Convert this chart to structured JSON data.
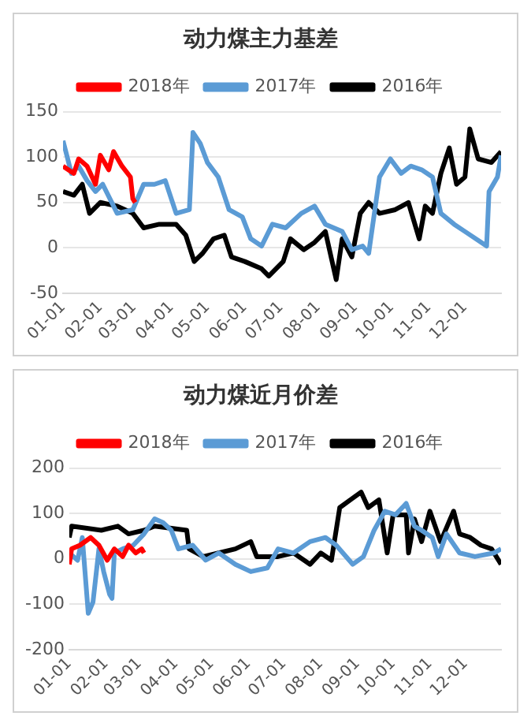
{
  "chart_data": [
    {
      "type": "line",
      "title": "动力煤主力基差",
      "legend": "top",
      "grid": "y",
      "line_style": "solid",
      "marker": "none",
      "ylim": [
        -50,
        150
      ],
      "yticks": [
        -50,
        0,
        50,
        100,
        150
      ],
      "xlim": [
        "--01-01",
        "--12-31"
      ],
      "xticks": [
        {
          "value": "--01-01",
          "label": "01-01"
        },
        {
          "value": "--02-01",
          "label": "02-01"
        },
        {
          "value": "--03-01",
          "label": "03-01"
        },
        {
          "value": "--04-01",
          "label": "04-01"
        },
        {
          "value": "--05-01",
          "label": "05-01"
        },
        {
          "value": "--06-01",
          "label": "06-01"
        },
        {
          "value": "--07-01",
          "label": "07-01"
        },
        {
          "value": "--08-01",
          "label": "08-01"
        },
        {
          "value": "--09-01",
          "label": "09-01"
        },
        {
          "value": "--10-01",
          "label": "10-01"
        },
        {
          "value": "--11-01",
          "label": "11-01"
        },
        {
          "value": "--12-01",
          "label": "12-01"
        }
      ],
      "series": [
        {
          "name": "2018年",
          "color": "#ff0000",
          "x": [
            "--01-01",
            "--01-10",
            "--01-14",
            "--01-21",
            "--01-28",
            "--02-01",
            "--02-08",
            "--02-12",
            "--02-19",
            "--02-26",
            "--02-28",
            "--03-02"
          ],
          "values": [
            90,
            82,
            98,
            90,
            70,
            102,
            86,
            106,
            90,
            78,
            54,
            50
          ]
        },
        {
          "name": "2017年",
          "color": "#5b9bd5",
          "x": [
            "--01-01",
            "--01-08",
            "--01-14",
            "--01-21",
            "--01-28",
            "--02-03",
            "--02-15",
            "--02-28",
            "--03-09",
            "--03-18",
            "--03-27",
            "--04-05",
            "--04-16",
            "--04-19",
            "--04-25",
            "--05-01",
            "--05-10",
            "--05-19",
            "--05-30",
            "--06-06",
            "--06-15",
            "--06-24",
            "--07-05",
            "--07-18",
            "--07-29",
            "--08-07",
            "--08-21",
            "--08-29",
            "--09-07",
            "--09-12",
            "--09-21",
            "--09-30",
            "--10-09",
            "--10-17",
            "--10-26",
            "--11-04",
            "--11-11",
            "--11-22",
            "--12-01",
            "--12-19",
            "--12-21",
            "--12-28",
            "--12-31"
          ],
          "values": [
            118,
            82,
            90,
            74,
            62,
            70,
            38,
            42,
            70,
            70,
            74,
            38,
            42,
            127,
            115,
            94,
            78,
            42,
            34,
            10,
            2,
            26,
            22,
            38,
            46,
            26,
            18,
            -2,
            2,
            -6,
            78,
            98,
            82,
            90,
            86,
            78,
            38,
            26,
            18,
            2,
            62,
            78,
            102
          ]
        },
        {
          "name": "2016年",
          "color": "#000000",
          "x": [
            "--01-01",
            "--01-10",
            "--01-17",
            "--01-23",
            "--02-01",
            "--02-15",
            "--02-28",
            "--03-09",
            "--03-22",
            "--04-05",
            "--04-13",
            "--04-20",
            "--04-27",
            "--05-06",
            "--05-15",
            "--05-21",
            "--06-01",
            "--06-15",
            "--06-21",
            "--07-03",
            "--07-09",
            "--07-20",
            "--07-29",
            "--08-07",
            "--08-16",
            "--08-21",
            "--08-29",
            "--09-05",
            "--09-12",
            "--09-21",
            "--10-04",
            "--10-15",
            "--10-24",
            "--10-29",
            "--11-04",
            "--11-11",
            "--11-18",
            "--11-24",
            "--12-01",
            "--12-05",
            "--12-12",
            "--12-23",
            "--12-31"
          ],
          "values": [
            62,
            58,
            70,
            38,
            50,
            46,
            38,
            22,
            26,
            26,
            14,
            -15,
            -6,
            10,
            14,
            -10,
            -15,
            -23,
            -31,
            -15,
            10,
            -2,
            6,
            18,
            -35,
            10,
            -10,
            38,
            50,
            38,
            42,
            50,
            10,
            46,
            38,
            82,
            110,
            70,
            78,
            131,
            98,
            94,
            106
          ]
        }
      ]
    },
    {
      "type": "line",
      "title": "动力煤近月价差",
      "legend": "top",
      "grid": "y",
      "line_style": "solid",
      "marker": "none",
      "ylim": [
        -200,
        200
      ],
      "yticks": [
        -200,
        -100,
        0,
        100,
        200
      ],
      "xlim": [
        "--01-01",
        "--12-31"
      ],
      "xticks": [
        {
          "value": "--01-01",
          "label": "01-01"
        },
        {
          "value": "--02-01",
          "label": "02-01"
        },
        {
          "value": "--03-01",
          "label": "03-01"
        },
        {
          "value": "--04-01",
          "label": "04-01"
        },
        {
          "value": "--05-01",
          "label": "05-01"
        },
        {
          "value": "--06-01",
          "label": "06-01"
        },
        {
          "value": "--07-01",
          "label": "07-01"
        },
        {
          "value": "--08-01",
          "label": "08-01"
        },
        {
          "value": "--09-01",
          "label": "09-01"
        },
        {
          "value": "--10-01",
          "label": "10-01"
        },
        {
          "value": "--11-01",
          "label": "11-01"
        },
        {
          "value": "--12-01",
          "label": "12-01"
        }
      ],
      "series": [
        {
          "name": "2018年",
          "color": "#ff0000",
          "x": [
            "--01-01",
            "--01-03",
            "--01-10",
            "--01-19",
            "--01-26",
            "--02-02",
            "--02-08",
            "--02-15",
            "--02-20",
            "--02-26",
            "--03-03",
            "--03-05"
          ],
          "values": [
            -12,
            22,
            30,
            47,
            30,
            -3,
            22,
            5,
            30,
            13,
            22,
            13
          ]
        },
        {
          "name": "2017年",
          "color": "#5b9bd5",
          "x": [
            "--01-01",
            "--01-08",
            "--01-12",
            "--01-17",
            "--01-21",
            "--01-26",
            "--01-30",
            "--02-04",
            "--02-06",
            "--02-08",
            "--02-15",
            "--02-24",
            "--03-05",
            "--03-14",
            "--03-21",
            "--03-28",
            "--04-03",
            "--04-15",
            "--04-26",
            "--05-07",
            "--05-21",
            "--06-03",
            "--06-17",
            "--06-26",
            "--07-09",
            "--07-23",
            "--08-05",
            "--08-14",
            "--08-28",
            "--09-06",
            "--09-15",
            "--09-24",
            "--10-03",
            "--10-12",
            "--10-19",
            "--10-25",
            "--11-03",
            "--11-08",
            "--11-15",
            "--11-26",
            "--12-09",
            "--12-25",
            "--12-31"
          ],
          "values": [
            13,
            -3,
            47,
            -120,
            -95,
            22,
            -28,
            -78,
            -87,
            13,
            22,
            30,
            55,
            88,
            80,
            63,
            22,
            30,
            -3,
            13,
            -12,
            -28,
            -20,
            22,
            13,
            38,
            47,
            30,
            -12,
            5,
            63,
            105,
            97,
            122,
            72,
            63,
            47,
            5,
            55,
            13,
            5,
            13,
            22
          ]
        },
        {
          "name": "2016年",
          "color": "#000000",
          "x": [
            "--01-01",
            "--01-03",
            "--01-28",
            "--02-11",
            "--02-20",
            "--03-05",
            "--03-14",
            "--04-10",
            "--04-12",
            "--04-24",
            "--05-07",
            "--05-21",
            "--06-03",
            "--06-08",
            "--06-26",
            "--07-09",
            "--07-23",
            "--08-01",
            "--08-10",
            "--08-17",
            "--08-26",
            "--09-04",
            "--09-10",
            "--09-19",
            "--09-26",
            "--10-01",
            "--10-12",
            "--10-14",
            "--10-19",
            "--10-25",
            "--11-01",
            "--11-10",
            "--11-21",
            "--11-26",
            "--12-05",
            "--12-14",
            "--12-23",
            "--12-31"
          ],
          "values": [
            47,
            72,
            63,
            72,
            55,
            63,
            72,
            63,
            22,
            5,
            13,
            22,
            38,
            5,
            5,
            13,
            -12,
            13,
            -3,
            113,
            130,
            147,
            113,
            130,
            13,
            97,
            97,
            13,
            88,
            38,
            105,
            38,
            105,
            55,
            47,
            30,
            22,
            -12
          ]
        }
      ]
    }
  ]
}
